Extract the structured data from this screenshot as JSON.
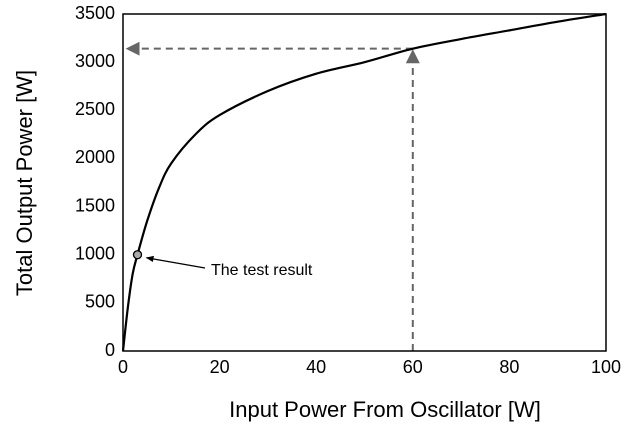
{
  "chart_data": {
    "type": "line",
    "xlabel": "Input Power From Oscillator [W]",
    "ylabel": "Total Output Power [W]",
    "x": [
      0,
      1,
      2,
      3,
      5,
      7.5,
      10,
      15,
      20,
      30,
      40,
      50,
      60,
      70,
      80,
      90,
      100
    ],
    "values": [
      0,
      450,
      800,
      1000,
      1350,
      1700,
      1950,
      2250,
      2450,
      2700,
      2880,
      3000,
      3140,
      3240,
      3330,
      3420,
      3500
    ],
    "color": "#000000",
    "xlim": [
      0,
      100
    ],
    "ylim": [
      0,
      3500
    ],
    "xticks": [
      0,
      20,
      40,
      60,
      80,
      100
    ],
    "yticks": [
      0,
      500,
      1000,
      1500,
      2000,
      2500,
      3000,
      3500
    ],
    "grid": false,
    "annotation": {
      "x": 3,
      "y": 1000,
      "text": "The test result"
    },
    "reference_point": {
      "x": 60,
      "y": 3140,
      "color": "#666666"
    }
  }
}
